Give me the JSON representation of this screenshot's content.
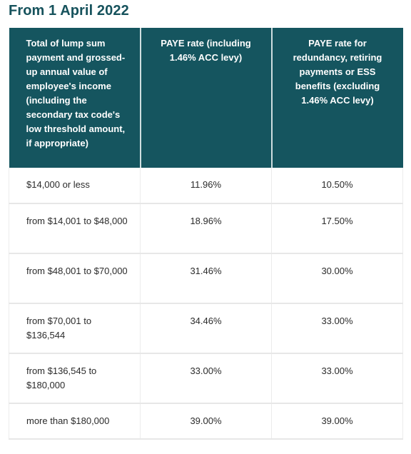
{
  "heading": "From 1 April 2022",
  "table": {
    "headers": {
      "threshold": "Total of lump sum payment and grossed-up annual value of employee's income (including the secondary tax code's low threshold amount, if appropriate)",
      "paye_rate": "PAYE rate (including 1.46% ACC levy)",
      "special_rate": "PAYE rate for redundancy, retiring payments or ESS benefits (excluding 1.46% ACC levy)"
    },
    "rows": [
      {
        "threshold": "$14,000 or less",
        "paye_rate": "11.96%",
        "special_rate": "10.50%"
      },
      {
        "threshold": "from $14,001 to $48,000",
        "paye_rate": "18.96%",
        "special_rate": "17.50%"
      },
      {
        "threshold": "from $48,001 to $70,000",
        "paye_rate": "31.46%",
        "special_rate": "30.00%"
      },
      {
        "threshold": "from $70,001 to $136,544",
        "paye_rate": "34.46%",
        "special_rate": "33.00%"
      },
      {
        "threshold": "from $136,545 to $180,000",
        "paye_rate": "33.00%",
        "special_rate": "33.00%"
      },
      {
        "threshold": "more than $180,000",
        "paye_rate": "39.00%",
        "special_rate": "39.00%"
      }
    ]
  },
  "colors": {
    "header_background": "#15555f",
    "heading_text": "#16525c"
  }
}
